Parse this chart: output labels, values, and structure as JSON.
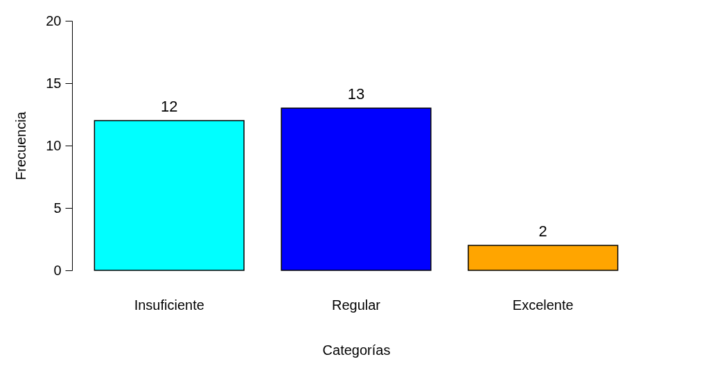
{
  "chart_data": {
    "type": "bar",
    "xlabel": "Categorías",
    "ylabel": "Frecuencia",
    "categories": [
      "Insuficiente",
      "Regular",
      "Excelente"
    ],
    "values": [
      12,
      13,
      2
    ],
    "colors": [
      "#00ffff",
      "#0000ff",
      "#ffa500"
    ],
    "ylim": [
      0,
      20
    ],
    "yticks": [
      0,
      5,
      10,
      15,
      20
    ],
    "grid": false,
    "data_labels": true
  }
}
